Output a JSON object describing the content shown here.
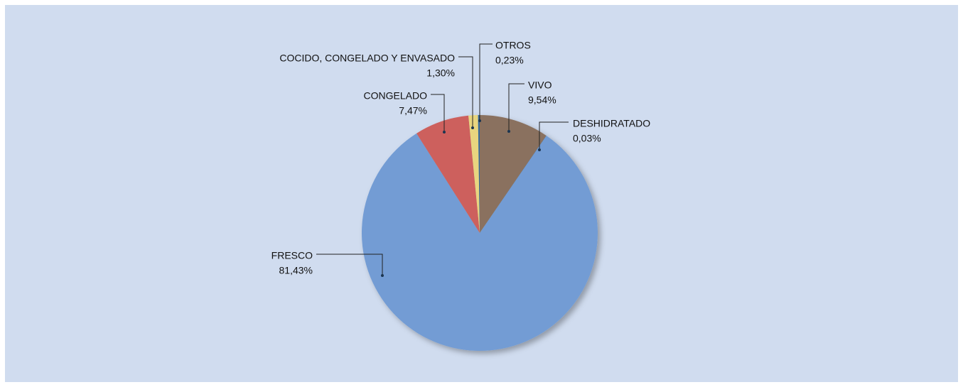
{
  "chart_data": {
    "type": "pie",
    "categories": [
      "VIVO",
      "DESHIDRATADO",
      "FRESCO",
      "CONGELADO",
      "COCIDO, CONGELADO Y ENVASADO",
      "OTROS"
    ],
    "values": [
      9.54,
      0.03,
      81.43,
      7.47,
      1.3,
      0.23
    ],
    "value_labels": [
      "9,54%",
      "0,03%",
      "81,43%",
      "7,47%",
      "1,30%",
      "0,23%"
    ],
    "colors": [
      "#8a715e",
      "#2f5f8f",
      "#739cd4",
      "#cd605d",
      "#e8d57f",
      "#356a9c"
    ]
  }
}
